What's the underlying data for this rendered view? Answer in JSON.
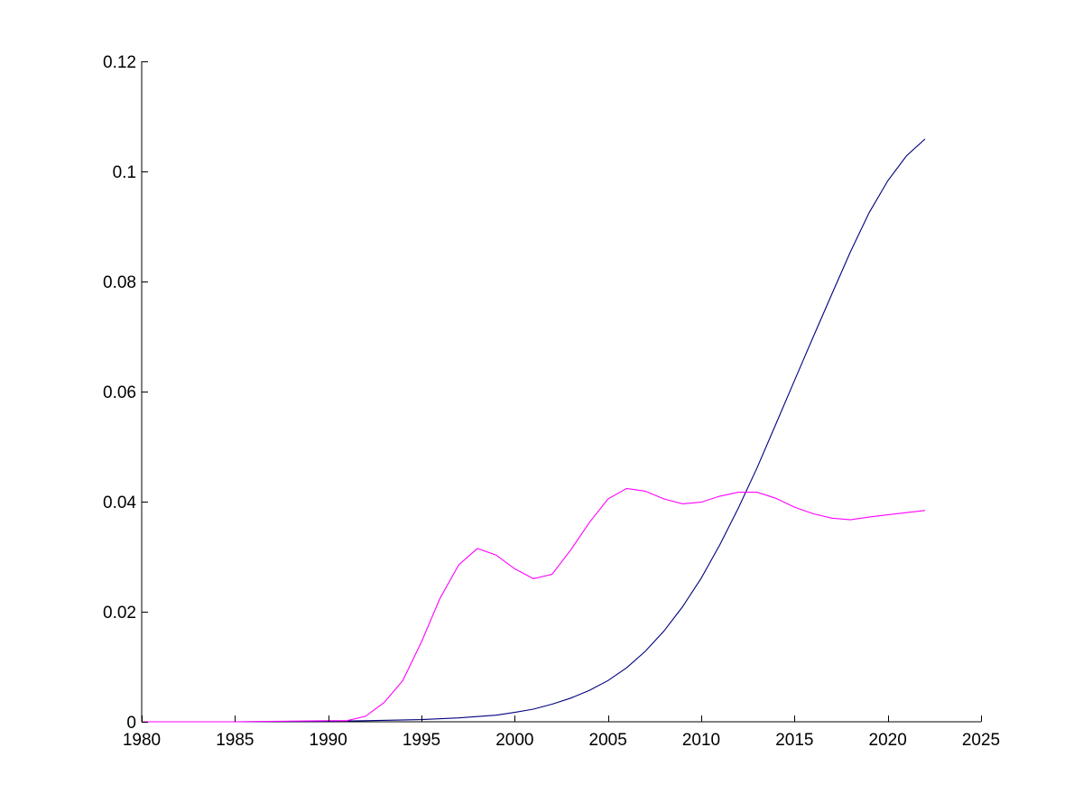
{
  "chart_data": {
    "type": "line",
    "title": "",
    "xlabel": "",
    "ylabel": "",
    "xlim": [
      1980,
      2025
    ],
    "ylim": [
      0,
      0.12
    ],
    "grid": false,
    "legend": "none",
    "x_ticks": [
      1980,
      1985,
      1990,
      1995,
      2000,
      2005,
      2010,
      2015,
      2020,
      2025
    ],
    "x_tick_labels": [
      "1980",
      "1985",
      "1990",
      "1995",
      "2000",
      "2005",
      "2010",
      "2015",
      "2020",
      "2025"
    ],
    "y_ticks": [
      0,
      0.02,
      0.04,
      0.06,
      0.08,
      0.1,
      0.12
    ],
    "y_tick_labels": [
      "0",
      "0.02",
      "0.04",
      "0.06",
      "0.08",
      "0.1",
      "0.12"
    ],
    "series": [
      {
        "color": "#00007f",
        "x": [
          1980,
          1985,
          1990,
          1992,
          1995,
          1997,
          1999,
          2000,
          2001,
          2002,
          2003,
          2004,
          2005,
          2006,
          2007,
          2008,
          2009,
          2010,
          2011,
          2012,
          2013,
          2014,
          2015,
          2016,
          2017,
          2018,
          2019,
          2020,
          2021,
          2022
        ],
        "y": [
          0,
          0,
          0.0001,
          0.0002,
          0.0004,
          0.0007,
          0.0012,
          0.0017,
          0.0023,
          0.0032,
          0.0043,
          0.0057,
          0.0075,
          0.0098,
          0.0128,
          0.0165,
          0.0209,
          0.0261,
          0.0322,
          0.0389,
          0.0462,
          0.0541,
          0.062,
          0.0699,
          0.0777,
          0.0854,
          0.0925,
          0.0983,
          0.1028,
          0.1059
        ]
      },
      {
        "color": "#ff00ff",
        "x": [
          1980,
          1985,
          1990,
          1991,
          1992,
          1993,
          1994,
          1995,
          1996,
          1997,
          1998,
          1999,
          2000,
          2001,
          2002,
          2003,
          2004,
          2005,
          2006,
          2007,
          2008,
          2009,
          2010,
          2011,
          2012,
          2013,
          2014,
          2015,
          2016,
          2017,
          2018,
          2019,
          2020,
          2021,
          2022
        ],
        "y": [
          0,
          0,
          0.0002,
          0.0002,
          0.001,
          0.0035,
          0.0075,
          0.0145,
          0.0225,
          0.0285,
          0.0315,
          0.0303,
          0.0278,
          0.026,
          0.0268,
          0.0312,
          0.0362,
          0.0405,
          0.0424,
          0.0419,
          0.0405,
          0.0396,
          0.0399,
          0.041,
          0.0417,
          0.0417,
          0.0406,
          0.039,
          0.0378,
          0.037,
          0.0367,
          0.0372,
          0.0376,
          0.038,
          0.0384
        ]
      }
    ]
  }
}
